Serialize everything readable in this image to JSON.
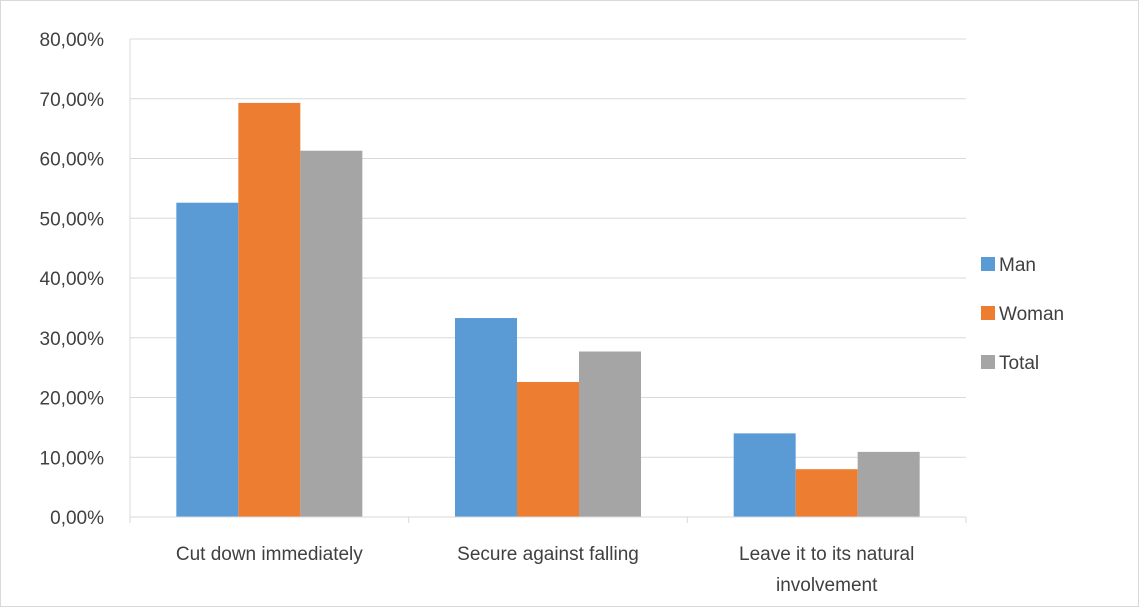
{
  "chart_data": {
    "type": "bar",
    "categories": [
      [
        "Cut down immediately"
      ],
      [
        "Secure against falling"
      ],
      [
        "Leave it to its natural",
        "involvement"
      ]
    ],
    "series": [
      {
        "name": "Man",
        "color": "#5b9bd5",
        "values": [
          52.6,
          33.3,
          14.0
        ]
      },
      {
        "name": "Woman",
        "color": "#ed7d31",
        "values": [
          69.3,
          22.6,
          8.0
        ]
      },
      {
        "name": "Total",
        "color": "#a5a5a5",
        "values": [
          61.3,
          27.7,
          10.9
        ]
      }
    ],
    "ylim": [
      0,
      80
    ],
    "ystep": 10,
    "ytick_labels": [
      "0,00%",
      "10,00%",
      "20,00%",
      "30,00%",
      "40,00%",
      "50,00%",
      "60,00%",
      "70,00%",
      "80,00%"
    ],
    "grid": true,
    "legend_position": "right",
    "title": "",
    "xlabel": "",
    "ylabel": ""
  }
}
